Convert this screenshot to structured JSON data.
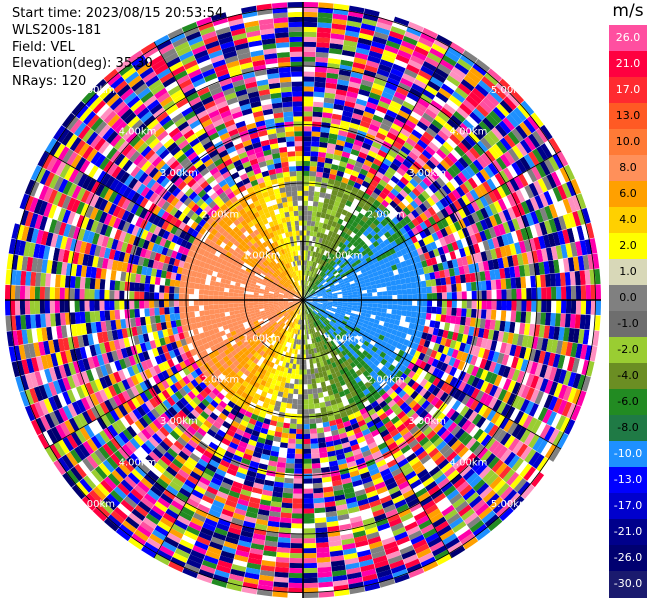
{
  "header": {
    "start_time": "Start time: 2023/08/15 20:53:54",
    "instrument": "WLS200s-181",
    "field": "Field: VEL",
    "elevation": "Elevation(deg): 35.30",
    "nrays": "NRays: 120"
  },
  "colorbar": {
    "unit": "m/s",
    "labels": [
      "26.0",
      "21.0",
      "17.0",
      "13.0",
      "10.0",
      "8.0",
      "6.0",
      "4.0",
      "2.0",
      "1.0",
      "0.0",
      "-1.0",
      "-2.0",
      "-4.0",
      "-6.0",
      "-8.0",
      "-10.0",
      "-13.0",
      "-17.0",
      "-21.0",
      "-26.0",
      "-30.0"
    ],
    "colors": [
      "#ff4fa0",
      "#ff0040",
      "#ff2a30",
      "#ff5a24",
      "#ff7a36",
      "#ff905a",
      "#ffa000",
      "#ffd000",
      "#ffff00",
      "#d8d8b8",
      "#808080",
      "#6e6e6e",
      "#9acd32",
      "#6b8e23",
      "#228b22",
      "#1f7a45",
      "#1e90ff",
      "#0000ff",
      "#0000cd",
      "#00008b",
      "#000070",
      "#1a1a6e"
    ]
  },
  "chart_data": {
    "type": "ppi",
    "field": "VEL",
    "units": "m/s",
    "elevation_deg": 35.3,
    "nrays": 120,
    "range_ring_labels": [
      "1.00km",
      "2.00km",
      "3.00km",
      "4.00km",
      "5.00km"
    ],
    "clear_air_range_km": [
      0,
      2.2
    ],
    "pattern": "dipole: positive (toward red/yellow) velocities to the west, negative (green/blue) to the east; noise beyond ~2.2 km",
    "vmin": -30.0,
    "vmax": 26.0
  }
}
